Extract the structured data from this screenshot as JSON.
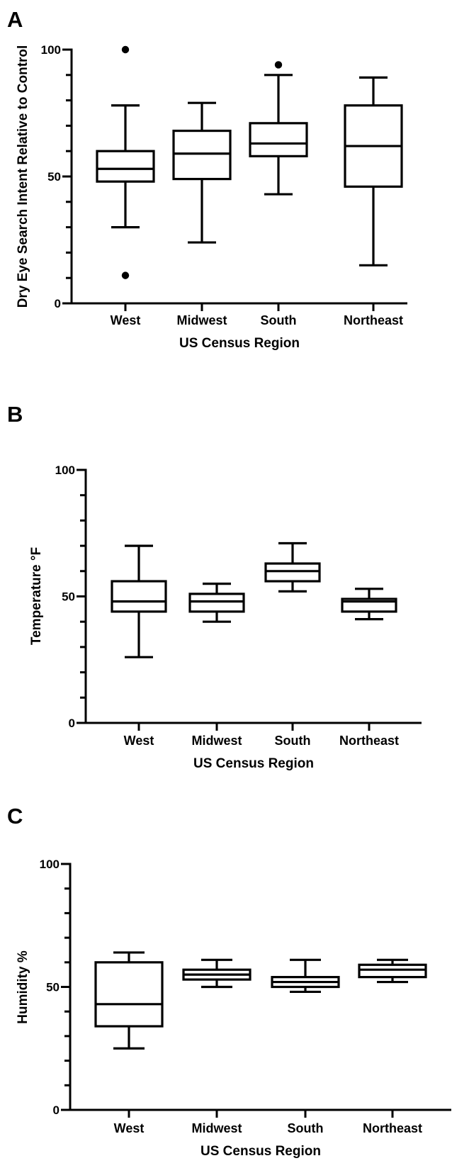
{
  "chart_data": [
    {
      "panel": "A",
      "type": "box",
      "categories": [
        "West",
        "Midwest",
        "South",
        "Northeast"
      ],
      "xlabel": "US Census Region",
      "ylabel": "Dry Eye Search Intent Relative to Control",
      "ylim": [
        0,
        100
      ],
      "ytick_labels": [
        "0",
        "50",
        "100"
      ],
      "boxes": [
        {
          "category": "West",
          "min": 30,
          "q1": 48,
          "median": 53,
          "q3": 60,
          "max": 78,
          "outliers": [
            100,
            11
          ]
        },
        {
          "category": "Midwest",
          "min": 24,
          "q1": 49,
          "median": 59,
          "q3": 68,
          "max": 79,
          "outliers": []
        },
        {
          "category": "South",
          "min": 43,
          "q1": 58,
          "median": 63,
          "q3": 71,
          "max": 90,
          "outliers": [
            94
          ]
        },
        {
          "category": "Northeast",
          "min": 15,
          "q1": 46,
          "median": 62,
          "q3": 78,
          "max": 89,
          "outliers": []
        }
      ]
    },
    {
      "panel": "B",
      "type": "box",
      "categories": [
        "West",
        "Midwest",
        "South",
        "Northeast"
      ],
      "xlabel": "US Census Region",
      "ylabel": "Temperature °F",
      "ylim": [
        0,
        100
      ],
      "ytick_labels": [
        "0",
        "50",
        "100"
      ],
      "boxes": [
        {
          "category": "West",
          "min": 26,
          "q1": 44,
          "median": 48,
          "q3": 56,
          "max": 70,
          "outliers": []
        },
        {
          "category": "Midwest",
          "min": 40,
          "q1": 44,
          "median": 48,
          "q3": 51,
          "max": 55,
          "outliers": []
        },
        {
          "category": "South",
          "min": 52,
          "q1": 56,
          "median": 60,
          "q3": 63,
          "max": 71,
          "outliers": []
        },
        {
          "category": "Northeast",
          "min": 41,
          "q1": 44,
          "median": 48,
          "q3": 49,
          "max": 53,
          "outliers": []
        }
      ]
    },
    {
      "panel": "C",
      "type": "box",
      "categories": [
        "West",
        "Midwest",
        "South",
        "Northeast"
      ],
      "xlabel": "US Census Region",
      "ylabel": "Humidity %",
      "ylim": [
        0,
        100
      ],
      "ytick_labels": [
        "0",
        "50",
        "100"
      ],
      "boxes": [
        {
          "category": "West",
          "min": 25,
          "q1": 34,
          "median": 43,
          "q3": 60,
          "max": 64,
          "outliers": []
        },
        {
          "category": "Midwest",
          "min": 50,
          "q1": 53,
          "median": 55,
          "q3": 57,
          "max": 61,
          "outliers": []
        },
        {
          "category": "South",
          "min": 48,
          "q1": 50,
          "median": 52,
          "q3": 54,
          "max": 61,
          "outliers": []
        },
        {
          "category": "Northeast",
          "min": 52,
          "q1": 54,
          "median": 57,
          "q3": 59,
          "max": 61,
          "outliers": []
        }
      ]
    }
  ]
}
